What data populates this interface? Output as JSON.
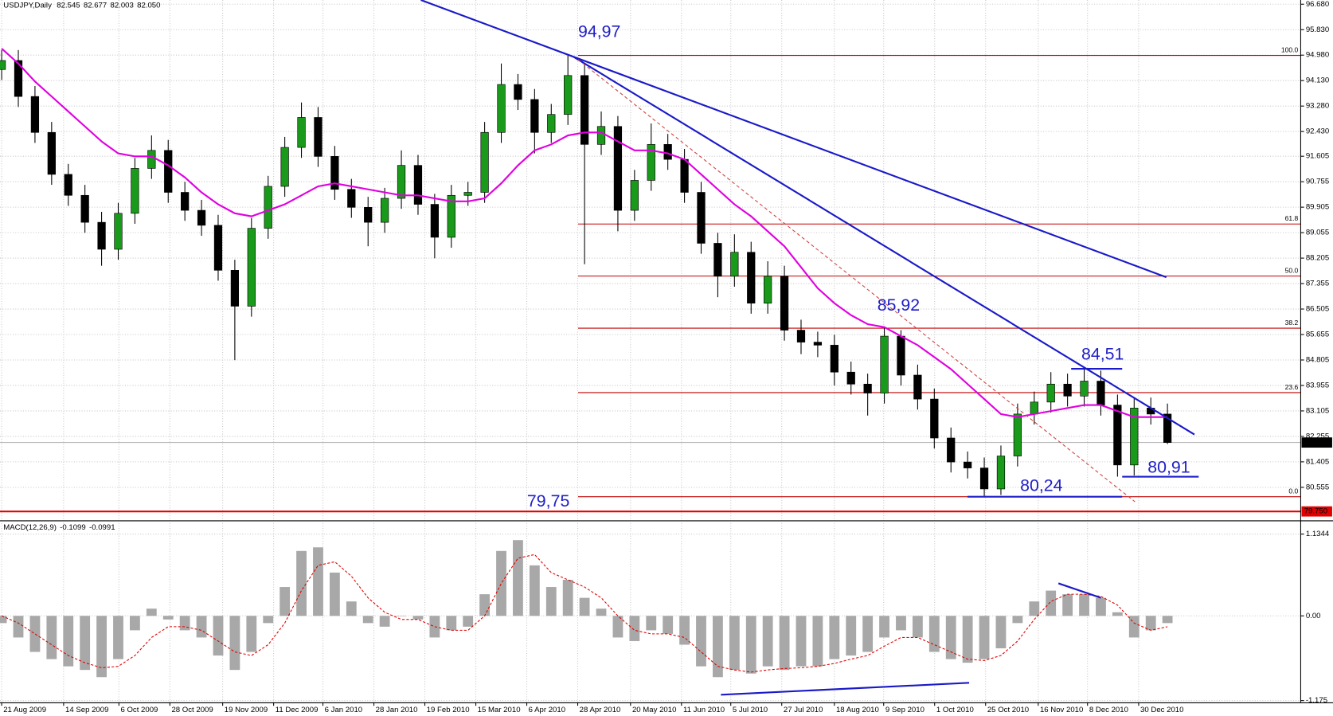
{
  "header": {
    "symbol": "USDJPY,Daily",
    "values": [
      82.545,
      82.677,
      82.003,
      {
        "value": 82.05,
        "label": "82.050"
      }
    ]
  },
  "chart_data": [
    {
      "type": "candlestick",
      "open": [
        94.5,
        94.8,
        93.6,
        92.4,
        91.0,
        90.3,
        89.4,
        88.5,
        89.7,
        91.2,
        91.8,
        90.4,
        89.8,
        89.3,
        87.8,
        86.6,
        89.2,
        90.6,
        91.9,
        92.9,
        91.6,
        90.5,
        89.9,
        89.4,
        90.2,
        91.3,
        90.0,
        88.9,
        90.3,
        90.4,
        92.4,
        94.0,
        93.5,
        92.4,
        93.0,
        94.3,
        92.0,
        92.6,
        89.8,
        90.8,
        92.0,
        91.5,
        90.4,
        88.7,
        87.6,
        88.4,
        86.7,
        87.6,
        85.8,
        85.4,
        85.3,
        84.4,
        84.0,
        83.7,
        85.6,
        84.3,
        83.5,
        82.2,
        81.4,
        81.2,
        80.5,
        81.6,
        83.0,
        83.4,
        84.0,
        83.6,
        84.1,
        83.3,
        81.3,
        83.2,
        83.0
      ],
      "high": [
        95.15,
        95.15,
        93.95,
        92.75,
        91.35,
        90.65,
        89.75,
        90.05,
        91.55,
        92.3,
        92.15,
        90.75,
        90.15,
        89.65,
        88.15,
        89.55,
        90.95,
        92.25,
        93.4,
        93.25,
        91.95,
        90.85,
        90.25,
        90.55,
        91.8,
        91.65,
        90.35,
        90.65,
        90.75,
        92.75,
        94.7,
        94.35,
        93.85,
        93.35,
        94.97,
        94.65,
        93.1,
        92.95,
        91.15,
        92.7,
        92.35,
        91.85,
        90.75,
        89.05,
        89.0,
        88.75,
        88.1,
        87.95,
        86.15,
        85.75,
        85.65,
        84.75,
        84.35,
        85.92,
        85.8,
        84.65,
        83.85,
        82.55,
        81.75,
        81.55,
        81.95,
        83.35,
        83.75,
        84.4,
        84.35,
        84.51,
        84.45,
        83.65,
        83.55,
        83.55,
        83.35
      ],
      "low": [
        94.15,
        93.25,
        92.05,
        90.65,
        89.95,
        89.05,
        87.95,
        88.15,
        89.35,
        90.85,
        90.05,
        89.45,
        88.95,
        87.45,
        84.8,
        86.25,
        88.85,
        90.25,
        91.55,
        91.25,
        90.15,
        89.55,
        88.6,
        89.05,
        89.85,
        89.65,
        88.2,
        88.55,
        89.95,
        90.05,
        92.05,
        93.15,
        91.7,
        92.05,
        92.65,
        88.0,
        91.65,
        89.1,
        89.45,
        90.45,
        91.15,
        90.05,
        88.35,
        86.9,
        87.25,
        86.35,
        86.35,
        85.45,
        85.0,
        84.9,
        83.95,
        83.65,
        82.95,
        83.35,
        83.95,
        83.15,
        81.85,
        81.05,
        80.85,
        80.24,
        80.3,
        81.25,
        82.65,
        83.05,
        83.25,
        83.25,
        82.95,
        80.91,
        80.95,
        82.65,
        82.0
      ],
      "close": [
        94.8,
        93.6,
        92.4,
        91.0,
        90.3,
        89.4,
        88.5,
        89.7,
        91.2,
        91.8,
        90.4,
        89.8,
        89.3,
        87.8,
        86.6,
        89.2,
        90.6,
        91.9,
        92.9,
        91.6,
        90.5,
        89.9,
        89.4,
        90.2,
        91.3,
        90.0,
        88.9,
        90.3,
        90.4,
        92.4,
        94.0,
        93.5,
        92.4,
        93.0,
        94.3,
        92.0,
        92.6,
        89.8,
        90.8,
        92.0,
        91.5,
        90.4,
        88.7,
        87.6,
        88.4,
        86.7,
        87.6,
        85.8,
        85.4,
        85.3,
        84.4,
        84.0,
        83.7,
        85.6,
        84.3,
        83.5,
        82.2,
        81.4,
        81.2,
        80.5,
        81.6,
        83.0,
        83.4,
        84.0,
        83.6,
        84.1,
        83.3,
        81.3,
        83.2,
        83.0,
        82.05
      ],
      "colors": {
        "up": "#1a9a1a",
        "down": "#000000"
      },
      "ma": {
        "color": "#e000e0",
        "values": [
          95.2,
          94.7,
          94.1,
          93.6,
          93.1,
          92.6,
          92.1,
          91.7,
          91.6,
          91.6,
          91.3,
          90.9,
          90.4,
          90.0,
          89.7,
          89.6,
          89.8,
          90.0,
          90.3,
          90.6,
          90.7,
          90.6,
          90.5,
          90.4,
          90.3,
          90.3,
          90.2,
          90.1,
          90.1,
          90.2,
          90.7,
          91.3,
          91.8,
          92.0,
          92.3,
          92.4,
          92.4,
          92.1,
          91.8,
          91.8,
          91.7,
          91.5,
          91.0,
          90.5,
          90.0,
          89.6,
          89.1,
          88.6,
          87.9,
          87.2,
          86.7,
          86.3,
          86.0,
          85.9,
          85.6,
          85.3,
          84.9,
          84.5,
          84.0,
          83.5,
          83.0,
          82.9,
          83.0,
          83.1,
          83.2,
          83.3,
          83.3,
          83.1,
          82.9,
          82.9,
          82.9
        ]
      },
      "xlim": [
        -0.1,
        78
      ],
      "xticks": [
        {
          "value": 0,
          "label": "21 Aug 2009"
        },
        {
          "value": 3.72,
          "label": "14 Sep 2009"
        },
        {
          "value": 7.04,
          "label": "6 Oct 2009"
        },
        {
          "value": 10.1,
          "label": "28 Oct 2009"
        },
        {
          "value": 13.27,
          "label": "19 Nov 2009"
        },
        {
          "value": 16.33,
          "label": "11 Dec 2009"
        },
        {
          "value": 19.29,
          "label": "6 Jan 2010"
        },
        {
          "value": 22.35,
          "label": "28 Jan 2010"
        },
        {
          "value": 25.41,
          "label": "19 Feb 2010"
        },
        {
          "value": 28.47,
          "label": "15 Mar 2010"
        },
        {
          "value": 31.53,
          "label": "6 Apr 2010"
        },
        {
          "value": 34.59,
          "label": "28 Apr 2010"
        },
        {
          "value": 37.76,
          "label": "20 May 2010"
        },
        {
          "value": 40.82,
          "label": "11 Jun 2010"
        },
        {
          "value": 43.78,
          "label": "5 Jul 2010"
        },
        {
          "value": 46.84,
          "label": "27 Jul 2010"
        },
        {
          "value": 50.0,
          "label": "18 Aug 2010"
        },
        {
          "value": 52.96,
          "label": "9 Sep 2010"
        },
        {
          "value": 56.02,
          "label": "1 Oct 2010"
        },
        {
          "value": 59.08,
          "label": "25 Oct 2010"
        },
        {
          "value": 62.24,
          "label": "16 Nov 2010"
        },
        {
          "value": 65.2,
          "label": "8 Dec 2010"
        },
        {
          "value": 68.27,
          "label": "30 Dec 2010"
        }
      ],
      "ylim": [
        79.45,
        96.82
      ],
      "yticks": [
        {
          "value": 96.68,
          "label": "96.680"
        },
        {
          "value": 95.83,
          "label": "95.830"
        },
        {
          "value": 94.98,
          "label": "94.980"
        },
        {
          "value": 94.13,
          "label": "94.130"
        },
        {
          "value": 93.28,
          "label": "93.280"
        },
        {
          "value": 92.43,
          "label": "92.430"
        },
        91.605,
        90.755,
        89.905,
        89.055,
        88.205,
        87.355,
        86.505,
        85.655,
        84.805,
        83.955,
        83.105,
        82.255,
        81.405,
        80.555
      ],
      "grid": true,
      "fib": {
        "color": "#c00000",
        "levels": [
          {
            "value": 100,
            "label": "100.0"
          },
          61.8,
          {
            "value": 50,
            "label": "50.0"
          },
          38.2,
          23.6,
          {
            "value": 0,
            "label": "0.0"
          }
        ]
      },
      "support": {
        "value": 79.75,
        "label": "79.750",
        "color": "#e00000"
      },
      "annotations": [
        {
          "value": 94.97,
          "label": "94,97"
        },
        {
          "value": 85.92,
          "label": "85,92"
        },
        {
          "value": 84.51,
          "label": "84,51"
        },
        {
          "value": 80.91,
          "label": "80,91"
        },
        {
          "value": 80.24,
          "label": "80,24"
        },
        {
          "value": 79.75,
          "label": "79,75"
        }
      ]
    },
    {
      "type": "macd",
      "title": "MACD(12,26,9)",
      "title_values": [
        -0.1099,
        -0.0991
      ],
      "histogram": {
        "color": "#a8a8a8",
        "values": [
          -0.1,
          -0.3,
          -0.5,
          -0.6,
          -0.7,
          -0.75,
          -0.85,
          -0.6,
          -0.2,
          0.1,
          -0.05,
          -0.2,
          -0.3,
          -0.55,
          -0.75,
          -0.5,
          -0.1,
          0.4,
          0.9,
          0.95,
          0.6,
          0.2,
          -0.1,
          -0.15,
          0.0,
          -0.05,
          -0.3,
          -0.2,
          -0.15,
          0.3,
          0.9,
          1.05,
          0.7,
          0.4,
          0.5,
          0.25,
          0.1,
          -0.3,
          -0.35,
          -0.2,
          -0.25,
          -0.4,
          -0.7,
          -0.85,
          -0.75,
          -0.8,
          -0.7,
          -0.75,
          -0.7,
          -0.7,
          -0.6,
          -0.55,
          -0.5,
          -0.3,
          -0.2,
          -0.3,
          -0.5,
          -0.6,
          -0.65,
          -0.6,
          -0.45,
          -0.1,
          0.2,
          0.35,
          0.3,
          0.3,
          0.25,
          0.05,
          -0.3,
          -0.2,
          -0.1
        ]
      },
      "signal": {
        "color": "#e00000",
        "values": [
          0.0,
          -0.1,
          -0.25,
          -0.4,
          -0.55,
          -0.65,
          -0.72,
          -0.7,
          -0.55,
          -0.3,
          -0.15,
          -0.15,
          -0.2,
          -0.35,
          -0.5,
          -0.55,
          -0.4,
          -0.1,
          0.35,
          0.7,
          0.75,
          0.55,
          0.25,
          0.05,
          -0.05,
          -0.05,
          -0.15,
          -0.2,
          -0.2,
          0.0,
          0.45,
          0.8,
          0.85,
          0.6,
          0.5,
          0.4,
          0.25,
          0.0,
          -0.2,
          -0.25,
          -0.25,
          -0.3,
          -0.5,
          -0.7,
          -0.75,
          -0.78,
          -0.75,
          -0.73,
          -0.72,
          -0.7,
          -0.66,
          -0.6,
          -0.55,
          -0.42,
          -0.3,
          -0.3,
          -0.4,
          -0.5,
          -0.6,
          -0.62,
          -0.55,
          -0.35,
          -0.05,
          0.2,
          0.3,
          0.3,
          0.27,
          0.15,
          -0.1,
          -0.2,
          -0.15
        ]
      },
      "ylim": [
        -1.2,
        1.3
      ],
      "yticks": [
        1.1344,
        {
          "value": 0,
          "label": "0.00"
        },
        -1.175
      ],
      "grid": true
    }
  ]
}
